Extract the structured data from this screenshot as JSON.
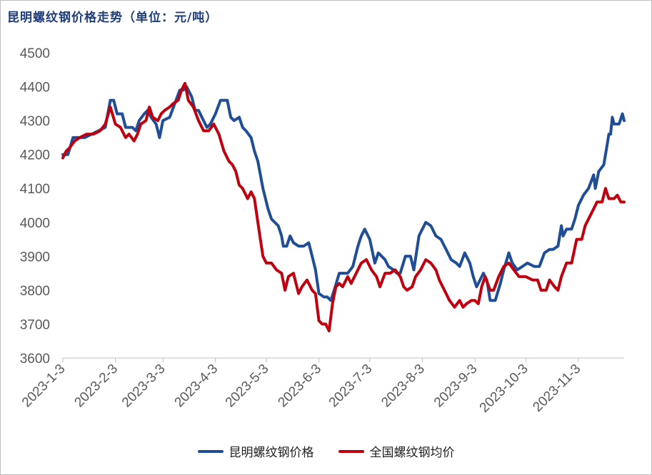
{
  "chart_data": {
    "type": "line",
    "title": "昆明螺纹钢价格走势（单位：元/吨）",
    "ylim": [
      3600,
      4500
    ],
    "yticks": [
      "3600",
      "3700",
      "3800",
      "3900",
      "4000",
      "4100",
      "4200",
      "4300",
      "4400",
      "4500"
    ],
    "xticks": [
      "2023-1-3",
      "2023-2-3",
      "2023-3-3",
      "2023-4-3",
      "2023-5-3",
      "2023-6-3",
      "2023-7-3",
      "2023-8-3",
      "2023-9-3",
      "2023-10-3",
      "2023-11-3"
    ],
    "xlim": [
      "2023-01-03",
      "2023-11-30"
    ],
    "grid": false,
    "legend_position": "bottom",
    "series": [
      {
        "name": "昆明螺纹钢价格",
        "color": "#1f4e96",
        "points": [
          [
            "2023-01-03",
            4200
          ],
          [
            "2023-01-06",
            4200
          ],
          [
            "2023-01-09",
            4250
          ],
          [
            "2023-01-12",
            4250
          ],
          [
            "2023-01-16",
            4250
          ],
          [
            "2023-01-20",
            4260
          ],
          [
            "2023-01-28",
            4280
          ],
          [
            "2023-01-31",
            4360
          ],
          [
            "2023-02-02",
            4360
          ],
          [
            "2023-02-04",
            4320
          ],
          [
            "2023-02-07",
            4320
          ],
          [
            "2023-02-09",
            4280
          ],
          [
            "2023-02-13",
            4280
          ],
          [
            "2023-02-15",
            4270
          ],
          [
            "2023-02-17",
            4300
          ],
          [
            "2023-02-20",
            4320
          ],
          [
            "2023-02-22",
            4330
          ],
          [
            "2023-02-24",
            4310
          ],
          [
            "2023-02-27",
            4290
          ],
          [
            "2023-03-01",
            4250
          ],
          [
            "2023-03-03",
            4300
          ],
          [
            "2023-03-07",
            4310
          ],
          [
            "2023-03-10",
            4350
          ],
          [
            "2023-03-13",
            4390
          ],
          [
            "2023-03-15",
            4390
          ],
          [
            "2023-03-17",
            4400
          ],
          [
            "2023-03-20",
            4370
          ],
          [
            "2023-03-22",
            4330
          ],
          [
            "2023-03-24",
            4330
          ],
          [
            "2023-03-27",
            4300
          ],
          [
            "2023-03-29",
            4280
          ],
          [
            "2023-03-31",
            4290
          ],
          [
            "2023-04-03",
            4320
          ],
          [
            "2023-04-06",
            4360
          ],
          [
            "2023-04-10",
            4360
          ],
          [
            "2023-04-12",
            4310
          ],
          [
            "2023-04-14",
            4300
          ],
          [
            "2023-04-17",
            4310
          ],
          [
            "2023-04-19",
            4280
          ],
          [
            "2023-04-21",
            4270
          ],
          [
            "2023-04-24",
            4250
          ],
          [
            "2023-04-26",
            4210
          ],
          [
            "2023-04-28",
            4180
          ],
          [
            "2023-05-01",
            4100
          ],
          [
            "2023-05-04",
            4040
          ],
          [
            "2023-05-06",
            4010
          ],
          [
            "2023-05-10",
            3990
          ],
          [
            "2023-05-12",
            3960
          ],
          [
            "2023-05-13",
            3930
          ],
          [
            "2023-05-15",
            3930
          ],
          [
            "2023-05-17",
            3960
          ],
          [
            "2023-05-19",
            3940
          ],
          [
            "2023-05-22",
            3930
          ],
          [
            "2023-05-25",
            3930
          ],
          [
            "2023-05-28",
            3940
          ],
          [
            "2023-05-30",
            3900
          ],
          [
            "2023-06-01",
            3860
          ],
          [
            "2023-06-03",
            3790
          ],
          [
            "2023-06-06",
            3780
          ],
          [
            "2023-06-08",
            3780
          ],
          [
            "2023-06-10",
            3770
          ],
          [
            "2023-06-12",
            3800
          ],
          [
            "2023-06-15",
            3850
          ],
          [
            "2023-06-20",
            3850
          ],
          [
            "2023-06-23",
            3870
          ],
          [
            "2023-06-26",
            3930
          ],
          [
            "2023-06-28",
            3960
          ],
          [
            "2023-06-30",
            3980
          ],
          [
            "2023-07-03",
            3950
          ],
          [
            "2023-07-06",
            3880
          ],
          [
            "2023-07-08",
            3910
          ],
          [
            "2023-07-12",
            3890
          ],
          [
            "2023-07-14",
            3870
          ],
          [
            "2023-07-17",
            3860
          ],
          [
            "2023-07-19",
            3850
          ],
          [
            "2023-07-21",
            3850
          ],
          [
            "2023-07-24",
            3900
          ],
          [
            "2023-07-27",
            3900
          ],
          [
            "2023-07-29",
            3860
          ],
          [
            "2023-08-01",
            3960
          ],
          [
            "2023-08-03",
            3980
          ],
          [
            "2023-08-05",
            4000
          ],
          [
            "2023-08-08",
            3990
          ],
          [
            "2023-08-11",
            3960
          ],
          [
            "2023-08-14",
            3950
          ],
          [
            "2023-08-17",
            3920
          ],
          [
            "2023-08-20",
            3890
          ],
          [
            "2023-08-23",
            3880
          ],
          [
            "2023-08-25",
            3870
          ],
          [
            "2023-08-28",
            3910
          ],
          [
            "2023-08-31",
            3880
          ],
          [
            "2023-09-02",
            3840
          ],
          [
            "2023-09-04",
            3810
          ],
          [
            "2023-09-06",
            3830
          ],
          [
            "2023-09-08",
            3850
          ],
          [
            "2023-09-10",
            3830
          ],
          [
            "2023-09-12",
            3770
          ],
          [
            "2023-09-15",
            3770
          ],
          [
            "2023-09-18",
            3820
          ],
          [
            "2023-09-20",
            3860
          ],
          [
            "2023-09-23",
            3910
          ],
          [
            "2023-09-25",
            3880
          ],
          [
            "2023-09-28",
            3860
          ],
          [
            "2023-10-01",
            3870
          ],
          [
            "2023-10-04",
            3880
          ],
          [
            "2023-10-08",
            3870
          ],
          [
            "2023-10-11",
            3870
          ],
          [
            "2023-10-14",
            3910
          ],
          [
            "2023-10-17",
            3920
          ],
          [
            "2023-10-19",
            3920
          ],
          [
            "2023-10-22",
            3930
          ],
          [
            "2023-10-24",
            3990
          ],
          [
            "2023-10-25",
            3960
          ],
          [
            "2023-10-27",
            3980
          ],
          [
            "2023-10-30",
            3980
          ],
          [
            "2023-11-01",
            4010
          ],
          [
            "2023-11-03",
            4050
          ],
          [
            "2023-11-06",
            4080
          ],
          [
            "2023-11-09",
            4100
          ],
          [
            "2023-11-12",
            4140
          ],
          [
            "2023-11-13",
            4100
          ],
          [
            "2023-11-15",
            4150
          ],
          [
            "2023-11-18",
            4170
          ],
          [
            "2023-11-20",
            4230
          ],
          [
            "2023-11-21",
            4260
          ],
          [
            "2023-11-22",
            4260
          ],
          [
            "2023-11-23",
            4310
          ],
          [
            "2023-11-24",
            4290
          ],
          [
            "2023-11-27",
            4290
          ],
          [
            "2023-11-29",
            4320
          ],
          [
            "2023-11-30",
            4300
          ]
        ]
      },
      {
        "name": "全国螺纹钢均价",
        "color": "#c0000f",
        "points": [
          [
            "2023-01-03",
            4190
          ],
          [
            "2023-01-05",
            4210
          ],
          [
            "2023-01-07",
            4220
          ],
          [
            "2023-01-10",
            4240
          ],
          [
            "2023-01-13",
            4250
          ],
          [
            "2023-01-17",
            4260
          ],
          [
            "2023-01-21",
            4260
          ],
          [
            "2023-01-25",
            4270
          ],
          [
            "2023-01-28",
            4290
          ],
          [
            "2023-01-31",
            4340
          ],
          [
            "2023-02-03",
            4290
          ],
          [
            "2023-02-06",
            4280
          ],
          [
            "2023-02-09",
            4250
          ],
          [
            "2023-02-11",
            4260
          ],
          [
            "2023-02-14",
            4240
          ],
          [
            "2023-02-16",
            4260
          ],
          [
            "2023-02-18",
            4290
          ],
          [
            "2023-02-21",
            4300
          ],
          [
            "2023-02-23",
            4340
          ],
          [
            "2023-02-25",
            4310
          ],
          [
            "2023-02-28",
            4300
          ],
          [
            "2023-03-02",
            4320
          ],
          [
            "2023-03-04",
            4330
          ],
          [
            "2023-03-07",
            4340
          ],
          [
            "2023-03-09",
            4350
          ],
          [
            "2023-03-12",
            4360
          ],
          [
            "2023-03-14",
            4390
          ],
          [
            "2023-03-16",
            4410
          ],
          [
            "2023-03-18",
            4360
          ],
          [
            "2023-03-21",
            4340
          ],
          [
            "2023-03-24",
            4300
          ],
          [
            "2023-03-27",
            4270
          ],
          [
            "2023-03-30",
            4270
          ],
          [
            "2023-04-02",
            4290
          ],
          [
            "2023-04-05",
            4260
          ],
          [
            "2023-04-08",
            4210
          ],
          [
            "2023-04-11",
            4180
          ],
          [
            "2023-04-13",
            4170
          ],
          [
            "2023-04-15",
            4150
          ],
          [
            "2023-04-17",
            4110
          ],
          [
            "2023-04-19",
            4100
          ],
          [
            "2023-04-22",
            4070
          ],
          [
            "2023-04-24",
            4090
          ],
          [
            "2023-04-26",
            4070
          ],
          [
            "2023-04-28",
            4000
          ],
          [
            "2023-05-01",
            3900
          ],
          [
            "2023-05-03",
            3880
          ],
          [
            "2023-05-06",
            3880
          ],
          [
            "2023-05-09",
            3860
          ],
          [
            "2023-05-12",
            3850
          ],
          [
            "2023-05-14",
            3800
          ],
          [
            "2023-05-16",
            3840
          ],
          [
            "2023-05-19",
            3850
          ],
          [
            "2023-05-22",
            3790
          ],
          [
            "2023-05-24",
            3810
          ],
          [
            "2023-05-27",
            3830
          ],
          [
            "2023-05-30",
            3800
          ],
          [
            "2023-06-01",
            3790
          ],
          [
            "2023-06-03",
            3710
          ],
          [
            "2023-06-05",
            3700
          ],
          [
            "2023-06-07",
            3700
          ],
          [
            "2023-06-09",
            3680
          ],
          [
            "2023-06-11",
            3760
          ],
          [
            "2023-06-13",
            3810
          ],
          [
            "2023-06-15",
            3820
          ],
          [
            "2023-06-17",
            3810
          ],
          [
            "2023-06-20",
            3840
          ],
          [
            "2023-06-22",
            3820
          ],
          [
            "2023-06-25",
            3850
          ],
          [
            "2023-06-28",
            3880
          ],
          [
            "2023-07-01",
            3890
          ],
          [
            "2023-07-04",
            3860
          ],
          [
            "2023-07-07",
            3840
          ],
          [
            "2023-07-09",
            3810
          ],
          [
            "2023-07-12",
            3850
          ],
          [
            "2023-07-15",
            3850
          ],
          [
            "2023-07-18",
            3860
          ],
          [
            "2023-07-21",
            3840
          ],
          [
            "2023-07-23",
            3810
          ],
          [
            "2023-07-25",
            3800
          ],
          [
            "2023-07-28",
            3810
          ],
          [
            "2023-07-30",
            3840
          ],
          [
            "2023-08-02",
            3860
          ],
          [
            "2023-08-05",
            3890
          ],
          [
            "2023-08-08",
            3880
          ],
          [
            "2023-08-11",
            3860
          ],
          [
            "2023-08-13",
            3830
          ],
          [
            "2023-08-16",
            3800
          ],
          [
            "2023-08-19",
            3770
          ],
          [
            "2023-08-22",
            3750
          ],
          [
            "2023-08-25",
            3770
          ],
          [
            "2023-08-27",
            3750
          ],
          [
            "2023-08-29",
            3760
          ],
          [
            "2023-09-01",
            3770
          ],
          [
            "2023-09-03",
            3770
          ],
          [
            "2023-09-05",
            3760
          ],
          [
            "2023-09-07",
            3810
          ],
          [
            "2023-09-09",
            3840
          ],
          [
            "2023-09-12",
            3800
          ],
          [
            "2023-09-14",
            3800
          ],
          [
            "2023-09-17",
            3840
          ],
          [
            "2023-09-20",
            3870
          ],
          [
            "2023-09-23",
            3880
          ],
          [
            "2023-09-26",
            3860
          ],
          [
            "2023-09-29",
            3840
          ],
          [
            "2023-10-03",
            3840
          ],
          [
            "2023-10-07",
            3830
          ],
          [
            "2023-10-10",
            3830
          ],
          [
            "2023-10-12",
            3800
          ],
          [
            "2023-10-15",
            3800
          ],
          [
            "2023-10-17",
            3830
          ],
          [
            "2023-10-20",
            3810
          ],
          [
            "2023-10-22",
            3800
          ],
          [
            "2023-10-24",
            3840
          ],
          [
            "2023-10-27",
            3880
          ],
          [
            "2023-10-30",
            3880
          ],
          [
            "2023-11-02",
            3950
          ],
          [
            "2023-11-05",
            3950
          ],
          [
            "2023-11-07",
            3990
          ],
          [
            "2023-11-10",
            4020
          ],
          [
            "2023-11-12",
            4040
          ],
          [
            "2023-11-14",
            4060
          ],
          [
            "2023-11-17",
            4060
          ],
          [
            "2023-11-19",
            4100
          ],
          [
            "2023-11-21",
            4070
          ],
          [
            "2023-11-24",
            4070
          ],
          [
            "2023-11-26",
            4080
          ],
          [
            "2023-11-28",
            4060
          ],
          [
            "2023-11-30",
            4060
          ]
        ]
      }
    ]
  }
}
